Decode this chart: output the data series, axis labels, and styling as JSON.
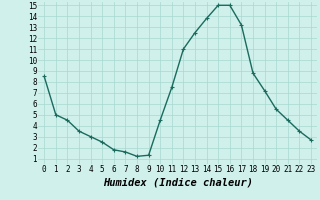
{
  "x": [
    0,
    1,
    2,
    3,
    4,
    5,
    6,
    7,
    8,
    9,
    10,
    11,
    12,
    13,
    14,
    15,
    16,
    17,
    18,
    19,
    20,
    21,
    22,
    23
  ],
  "y": [
    8.5,
    5.0,
    4.5,
    3.5,
    3.0,
    2.5,
    1.8,
    1.6,
    1.2,
    1.3,
    4.5,
    7.5,
    11.0,
    12.5,
    13.8,
    15.0,
    15.0,
    13.2,
    8.8,
    7.2,
    5.5,
    4.5,
    3.5,
    2.7
  ],
  "line_color": "#1a6b5e",
  "marker": "+",
  "bg_color": "#cff0eb",
  "grid_color": "#a8d8d0",
  "xlabel": "Humidex (Indice chaleur)",
  "xlabel_fontsize": 7.5,
  "ylim_min": 1,
  "ylim_max": 15,
  "xlim_min": 0,
  "xlim_max": 23,
  "yticks": [
    1,
    2,
    3,
    4,
    5,
    6,
    7,
    8,
    9,
    10,
    11,
    12,
    13,
    14,
    15
  ],
  "xticks": [
    0,
    1,
    2,
    3,
    4,
    5,
    6,
    7,
    8,
    9,
    10,
    11,
    12,
    13,
    14,
    15,
    16,
    17,
    18,
    19,
    20,
    21,
    22,
    23
  ],
  "tick_fontsize": 5.5,
  "marker_size": 3,
  "linewidth": 1.0
}
